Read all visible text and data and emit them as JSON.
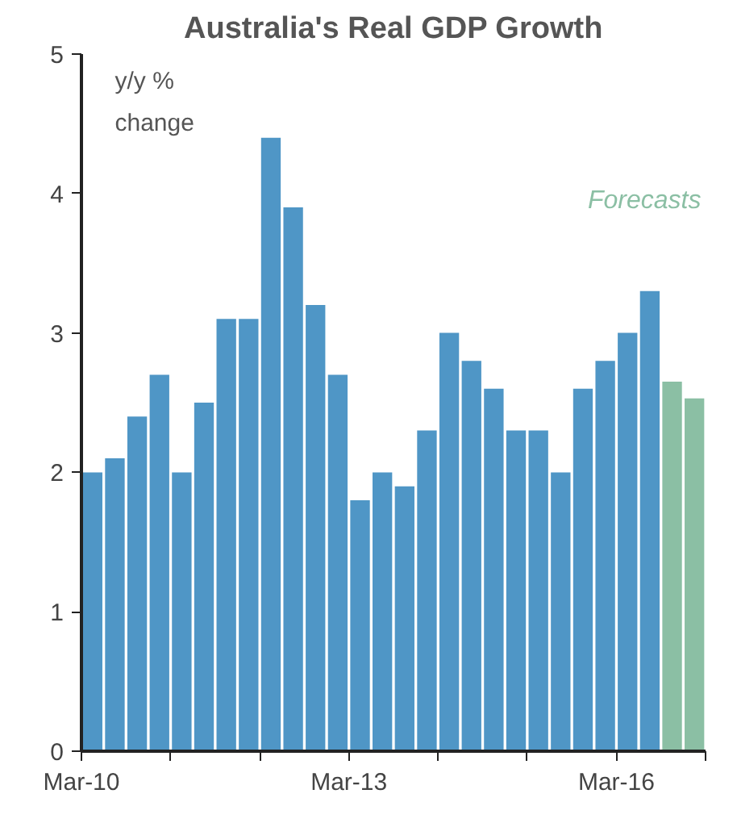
{
  "chart_data": {
    "type": "bar",
    "title": "Australia's Real GDP Growth",
    "ylabel": "y/y % change",
    "categories": [
      "Mar-10",
      null,
      null,
      null,
      null,
      null,
      null,
      null,
      null,
      null,
      null,
      null,
      "Mar-13",
      null,
      null,
      null,
      null,
      null,
      null,
      null,
      null,
      null,
      null,
      null,
      "Mar-16",
      null,
      null,
      null
    ],
    "values": [
      2.0,
      2.1,
      2.4,
      2.7,
      2.0,
      2.5,
      3.1,
      3.1,
      4.4,
      3.9,
      3.2,
      2.7,
      1.8,
      2.0,
      1.9,
      2.3,
      3.0,
      2.8,
      2.6,
      2.3,
      2.3,
      2.0,
      2.6,
      2.8,
      3.0,
      3.3,
      2.65,
      2.53
    ],
    "colors": [
      "#4f96c6",
      "#4f96c6",
      "#4f96c6",
      "#4f96c6",
      "#4f96c6",
      "#4f96c6",
      "#4f96c6",
      "#4f96c6",
      "#4f96c6",
      "#4f96c6",
      "#4f96c6",
      "#4f96c6",
      "#4f96c6",
      "#4f96c6",
      "#4f96c6",
      "#4f96c6",
      "#4f96c6",
      "#4f96c6",
      "#4f96c6",
      "#4f96c6",
      "#4f96c6",
      "#4f96c6",
      "#4f96c6",
      "#4f96c6",
      "#4f96c6",
      "#4f96c6",
      "#8bbfa4",
      "#8bbfa4"
    ],
    "ylim": [
      0,
      5
    ],
    "yticks": [
      0,
      1,
      2,
      3,
      4,
      5
    ],
    "grid": false,
    "annotations": [
      "Forecasts"
    ]
  }
}
